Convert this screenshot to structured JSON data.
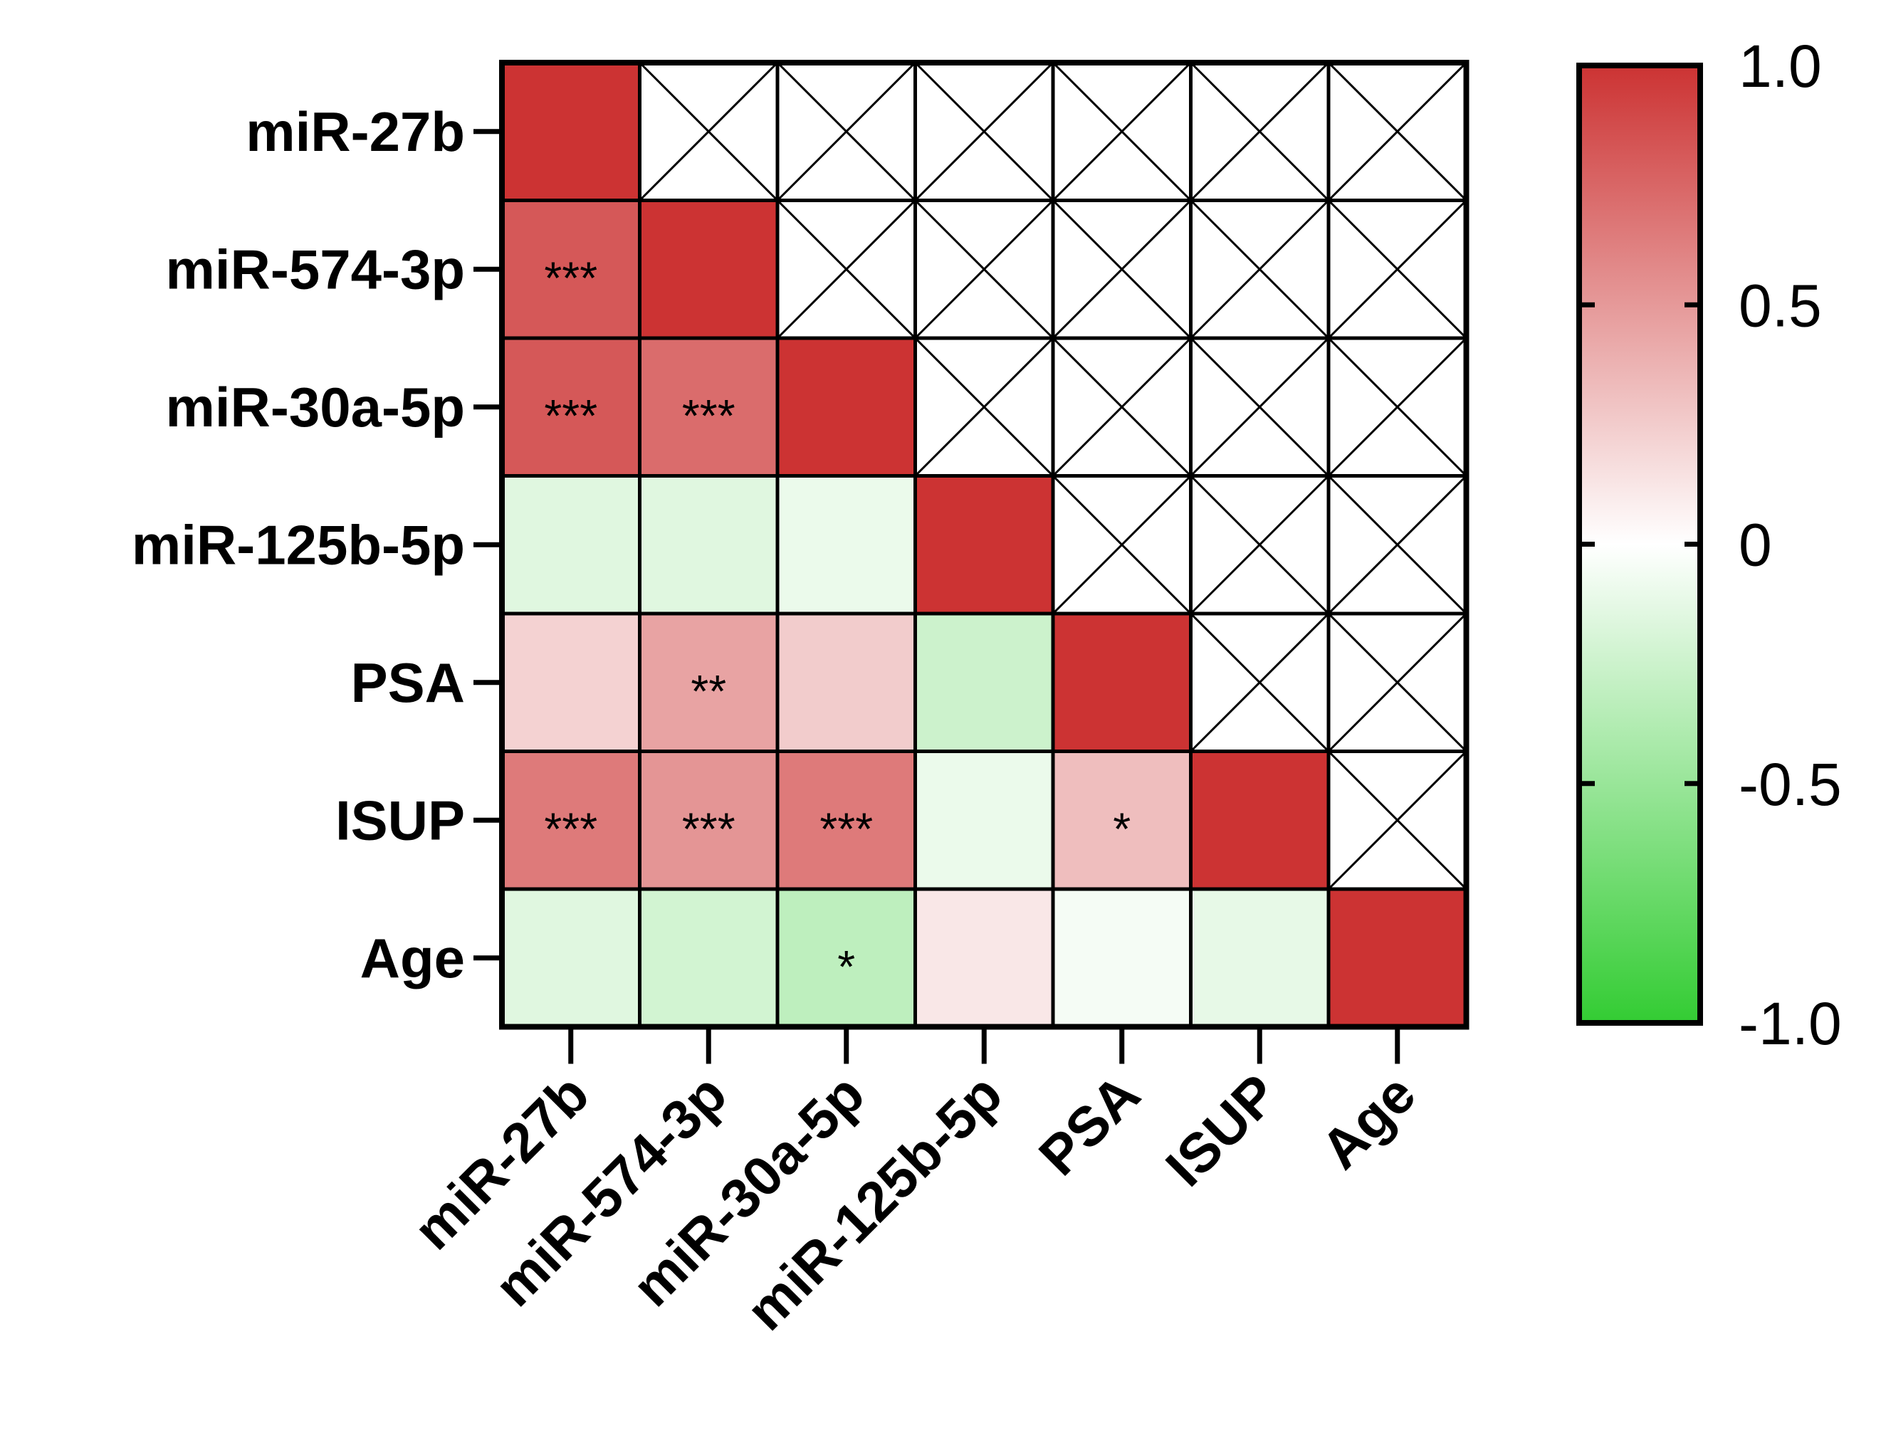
{
  "chart_data": {
    "type": "heatmap",
    "title": "",
    "row_labels": [
      "miR-27b",
      "miR-574-3p",
      "miR-30a-5p",
      "miR-125b-5p",
      "PSA",
      "ISUP",
      "Age"
    ],
    "col_labels": [
      "miR-27b",
      "miR-574-3p",
      "miR-30a-5p",
      "miR-125b-5p",
      "PSA",
      "ISUP",
      "Age"
    ],
    "values": [
      [
        1.0,
        null,
        null,
        null,
        null,
        null,
        null
      ],
      [
        0.82,
        1.0,
        null,
        null,
        null,
        null,
        null
      ],
      [
        0.82,
        0.72,
        1.0,
        null,
        null,
        null,
        null
      ],
      [
        -0.15,
        -0.15,
        -0.1,
        1.0,
        null,
        null,
        null
      ],
      [
        0.22,
        0.45,
        0.25,
        -0.25,
        1.0,
        null,
        null
      ],
      [
        0.65,
        0.52,
        0.65,
        -0.1,
        0.32,
        1.0,
        null
      ],
      [
        -0.15,
        -0.22,
        -0.32,
        0.12,
        -0.05,
        -0.12,
        1.0
      ]
    ],
    "significance": [
      [
        "",
        "",
        "",
        "",
        "",
        "",
        ""
      ],
      [
        "***",
        "",
        "",
        "",
        "",
        "",
        ""
      ],
      [
        "***",
        "***",
        "",
        "",
        "",
        "",
        ""
      ],
      [
        "",
        "",
        "",
        "",
        "",
        "",
        ""
      ],
      [
        "",
        "**",
        "",
        "",
        "",
        "",
        ""
      ],
      [
        "***",
        "***",
        "***",
        "",
        "*",
        "",
        ""
      ],
      [
        "",
        "",
        "*",
        "",
        "",
        "",
        ""
      ]
    ],
    "masked": "upper triangle (crossed cells)",
    "color_scale": {
      "range": [
        -1.0,
        1.0
      ],
      "ticks": [
        1.0,
        0.5,
        0,
        -0.5,
        -1.0
      ],
      "tick_labels": [
        "1.0",
        "0.5",
        "0",
        "-0.5",
        "-1.0"
      ],
      "colors": {
        "high": "#cc3333",
        "mid": "#ffffff",
        "low": "#33cc33"
      }
    }
  },
  "colors": {
    "high": "#cc3333",
    "mid": "#ffffff",
    "low": "#33cc33",
    "line": "#000000"
  }
}
